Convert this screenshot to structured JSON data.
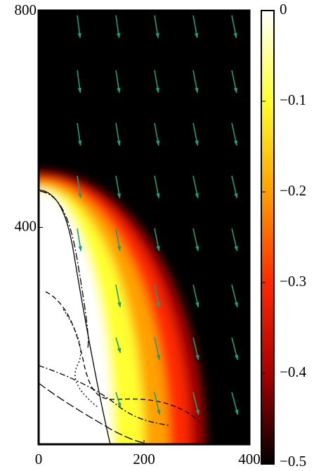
{
  "chart_data": {
    "type": "heatmap",
    "xlim": [
      0,
      400
    ],
    "xticks": [
      0,
      200,
      400
    ],
    "ylim": [
      0,
      800
    ],
    "yticks": [
      400,
      800
    ],
    "background": "#000000",
    "arrow_color": "#1f9e7a",
    "colorbar": {
      "lim": [
        -0.5,
        0
      ],
      "ticks": [
        0,
        {
          "value": -0.1,
          "label": "−0.1"
        },
        {
          "value": -0.2,
          "label": "−0.2"
        },
        {
          "value": -0.3,
          "label": "−0.3"
        },
        {
          "value": -0.4,
          "label": "−0.4"
        },
        {
          "value": -0.5,
          "label": "−0.5"
        }
      ],
      "colors": [
        "#ffffff",
        "#ffff30",
        "#ffa000",
        "#ff2a00",
        "#a80000",
        "#000000"
      ]
    }
  }
}
